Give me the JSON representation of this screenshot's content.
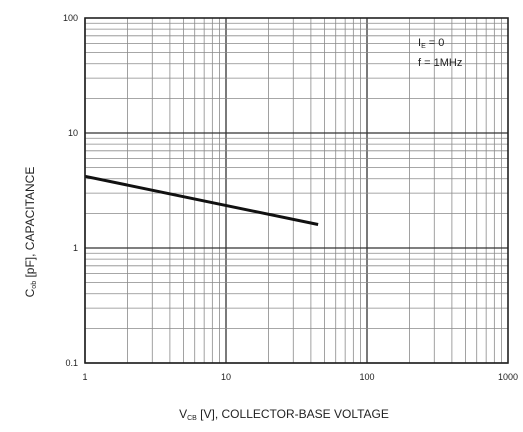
{
  "chart_data": {
    "type": "line",
    "x_scale": "log",
    "y_scale": "log",
    "xlim": [
      1,
      1000
    ],
    "ylim": [
      0.1,
      100
    ],
    "grid": true,
    "x_ticks": [
      {
        "value": 1,
        "label": "1"
      },
      {
        "value": 10,
        "label": "10"
      },
      {
        "value": 100,
        "label": "100"
      },
      {
        "value": 1000,
        "label": "1000"
      }
    ],
    "y_ticks": [
      {
        "value": 0.1,
        "label": "0.1"
      },
      {
        "value": 1,
        "label": "1"
      },
      {
        "value": 10,
        "label": "10"
      },
      {
        "value": 100,
        "label": "100"
      }
    ],
    "xlabel": {
      "main": "V",
      "sub": "CB",
      "rest": " [V], COLLECTOR-BASE VOLTAGE"
    },
    "ylabel": {
      "main": "C",
      "sub": "ob",
      "rest": " [pF], CAPACITANCE"
    },
    "annotations": [
      {
        "main": "I",
        "sub": "E",
        "rest": " = 0"
      },
      {
        "main": "f = 1MHz",
        "sub": "",
        "rest": ""
      }
    ],
    "series": [
      {
        "x": [
          1,
          45
        ],
        "y": [
          4.2,
          1.6
        ]
      }
    ]
  }
}
